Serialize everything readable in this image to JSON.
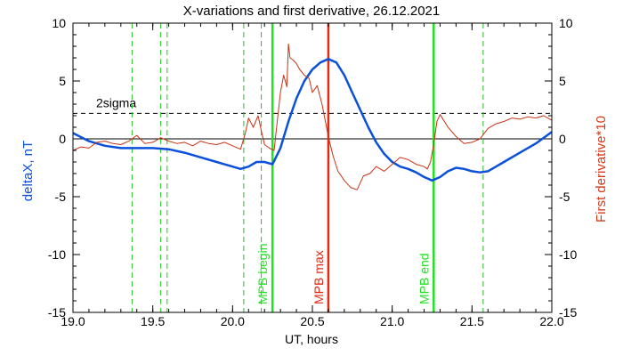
{
  "chart_data": {
    "type": "line",
    "title": "X-variations and first derivative, 26.12.2021",
    "xlabel": "UT, hours",
    "ylabel_left": "deltaX, nT",
    "ylabel_right": "First derivative*10",
    "xlim": [
      19.0,
      22.0
    ],
    "ylim": [
      -15,
      10
    ],
    "x_ticks": [
      "19.0",
      "19.5",
      "20.0",
      "20.5",
      "21.0",
      "21.5",
      "22.0"
    ],
    "y_ticks_left": [
      "10",
      "5",
      "0",
      "-5",
      "-10",
      "-15"
    ],
    "y_ticks_right": [
      "10",
      "5",
      "0",
      "-5",
      "-10",
      "-15"
    ],
    "colors": {
      "deltaX": "#0a50dc",
      "derivative": "#c83214",
      "mpb_max": "#e02a12",
      "mpb_bounds": "#22e022",
      "markers": "#22c022",
      "threshold": "#000000"
    },
    "series": [
      {
        "name": "deltaX, nT",
        "axis": "left",
        "x": [
          19.0,
          19.1,
          19.2,
          19.3,
          19.4,
          19.5,
          19.6,
          19.7,
          19.8,
          19.9,
          20.0,
          20.05,
          20.1,
          20.15,
          20.2,
          20.25,
          20.3,
          20.35,
          20.4,
          20.45,
          20.5,
          20.55,
          20.6,
          20.65,
          20.7,
          20.75,
          20.8,
          20.85,
          20.9,
          20.95,
          21.0,
          21.05,
          21.1,
          21.15,
          21.2,
          21.25,
          21.3,
          21.35,
          21.4,
          21.45,
          21.5,
          21.55,
          21.6,
          21.7,
          21.8,
          21.9,
          22.0
        ],
        "y": [
          0.5,
          -0.2,
          -0.6,
          -0.8,
          -0.8,
          -0.8,
          -0.9,
          -1.2,
          -1.6,
          -2.0,
          -2.4,
          -2.6,
          -2.4,
          -2.0,
          -2.0,
          -2.2,
          -0.8,
          1.5,
          3.5,
          5.0,
          6.0,
          6.6,
          6.9,
          6.6,
          5.5,
          4.0,
          2.5,
          1.0,
          -0.3,
          -1.3,
          -2.0,
          -2.4,
          -2.6,
          -2.9,
          -3.3,
          -3.6,
          -3.3,
          -2.8,
          -2.5,
          -2.6,
          -2.8,
          -2.9,
          -2.8,
          -2.0,
          -1.2,
          -0.4,
          0.6
        ]
      },
      {
        "name": "First derivative*10",
        "axis": "right",
        "x": [
          19.0,
          19.05,
          19.1,
          19.15,
          19.2,
          19.25,
          19.3,
          19.35,
          19.4,
          19.45,
          19.5,
          19.55,
          19.6,
          19.65,
          19.7,
          19.75,
          19.8,
          19.85,
          19.9,
          19.95,
          20.0,
          20.05,
          20.08,
          20.1,
          20.13,
          20.16,
          20.18,
          20.2,
          20.23,
          20.26,
          20.28,
          20.3,
          20.32,
          20.34,
          20.35,
          20.36,
          20.38,
          20.4,
          20.42,
          20.45,
          20.48,
          20.5,
          20.53,
          20.56,
          20.6,
          20.63,
          20.66,
          20.7,
          20.74,
          20.78,
          20.82,
          20.86,
          20.9,
          20.95,
          21.0,
          21.05,
          21.1,
          21.15,
          21.2,
          21.22,
          21.24,
          21.26,
          21.28,
          21.3,
          21.35,
          21.4,
          21.45,
          21.5,
          21.55,
          21.6,
          21.65,
          21.7,
          21.75,
          21.8,
          21.85,
          21.9,
          21.95,
          22.0
        ],
        "y": [
          -1.0,
          -0.7,
          -0.8,
          -0.3,
          -0.2,
          -0.4,
          -0.5,
          -0.2,
          0.3,
          -0.4,
          -0.3,
          0.1,
          -0.2,
          -0.4,
          -0.3,
          -0.6,
          -0.2,
          -0.4,
          -0.5,
          -0.3,
          -0.6,
          -0.9,
          0.5,
          1.8,
          1.0,
          2.0,
          0.7,
          -0.5,
          -0.8,
          -1.0,
          1.5,
          4.0,
          5.5,
          4.5,
          8.2,
          7.0,
          6.8,
          6.5,
          6.0,
          5.5,
          5.2,
          4.0,
          4.6,
          3.0,
          0.2,
          -1.5,
          -2.8,
          -3.6,
          -4.2,
          -4.4,
          -3.2,
          -3.0,
          -2.4,
          -2.8,
          -2.2,
          -1.6,
          -1.8,
          -2.2,
          -2.4,
          -2.6,
          -2.0,
          -0.5,
          1.5,
          2.1,
          1.0,
          0.2,
          -0.4,
          -0.3,
          0.0,
          0.9,
          1.3,
          1.5,
          1.8,
          1.7,
          1.9,
          1.8,
          2.0,
          1.6
        ]
      }
    ],
    "threshold": {
      "label": "2sigma",
      "y": 2.2,
      "style": "dashed"
    },
    "zero_line_y": 0,
    "dashed_markers_x": [
      19.37,
      19.55,
      19.59,
      20.07,
      20.18,
      21.57
    ],
    "events": [
      {
        "label": "MPB begin",
        "x": 20.25,
        "color": "#22e022"
      },
      {
        "label": "MPB max",
        "x": 20.6,
        "color": "#e02a12"
      },
      {
        "label": "MPB end",
        "x": 21.26,
        "color": "#22e022"
      }
    ]
  }
}
